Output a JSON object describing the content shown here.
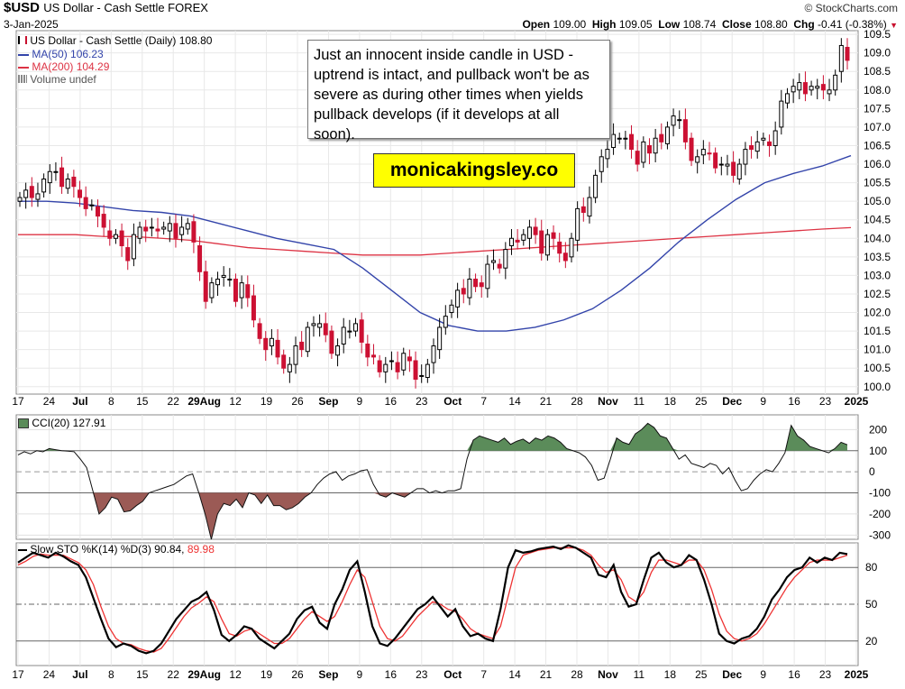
{
  "header": {
    "symbol": "$USD",
    "name": "US Dollar - Cash Settle FOREX",
    "date": "3-Jan-2025",
    "brand": "© StockCharts.com",
    "open_label": "Open",
    "open": "109.00",
    "high_label": "High",
    "high": "109.05",
    "low_label": "Low",
    "low": "108.74",
    "close_label": "Close",
    "close": "108.80",
    "chg_label": "Chg",
    "chg": "-0.41 (-0.38%)"
  },
  "legend": {
    "price": "US Dollar - Cash Settle (Daily) 108.80",
    "ma50": "MA(50) 106.23",
    "ma200": "MA(200) 104.29",
    "volume": "Volume undef"
  },
  "annotation": {
    "text": "Just an innocent inside candle in USD - uptrend is intact, and pullback won't be as severe as during other times when yields pullback develops (if it develops at all soon)."
  },
  "watermark": "monicakingsley.co",
  "cci_label": "CCI(20) 127.91",
  "sto_label_main": "Slow STO %K(14) %D(3) 90.84,",
  "sto_label_d": "89.98",
  "colors": {
    "up": "#000000",
    "down": "#cc1133",
    "ma50": "#3344aa",
    "ma200": "#dd3344",
    "cci_fill_pos": "#5b8c5a",
    "cci_fill_neg": "#9b5a55",
    "stoK": "#000000",
    "stoD": "#ee3333"
  },
  "chart_data": [
    {
      "type": "candlestick",
      "title": "US Dollar - Cash Settle (Daily)",
      "price_axis": {
        "ticks": [
          "100.0",
          "100.5",
          "101.0",
          "101.5",
          "102.0",
          "102.5",
          "103.0",
          "103.5",
          "104.0",
          "104.5",
          "105.0",
          "105.5",
          "106.0",
          "106.5",
          "107.0",
          "107.5",
          "108.0",
          "108.5",
          "109.0",
          "109.5"
        ],
        "range": [
          99.8,
          109.6
        ]
      },
      "x_ticks": [
        "17",
        "24",
        "Jul",
        "8",
        "15",
        "22",
        "29Aug",
        "12",
        "19",
        "26",
        "Sep",
        "9",
        "16",
        "23",
        "Oct",
        "7",
        "14",
        "21",
        "28",
        "Nov",
        "11",
        "18",
        "25",
        "Dec",
        "9",
        "16",
        "23",
        "2025"
      ],
      "close": [
        105.1,
        105.3,
        105.1,
        105.2,
        105.6,
        105.8,
        105.8,
        105.4,
        105.6,
        105.4,
        105.1,
        104.8,
        104.9,
        104.6,
        104.3,
        104.0,
        104.1,
        103.8,
        103.4,
        104.1,
        104.3,
        104.2,
        104.3,
        104.2,
        104.3,
        104.4,
        104.0,
        104.3,
        104.4,
        103.9,
        103.1,
        102.3,
        102.8,
        102.9,
        103.0,
        102.9,
        102.3,
        102.8,
        102.4,
        101.8,
        101.3,
        101.0,
        101.3,
        100.8,
        100.5,
        100.6,
        101.1,
        101.0,
        101.6,
        101.7,
        101.7,
        101.4,
        100.9,
        101.1,
        101.6,
        101.5,
        101.7,
        101.2,
        100.8,
        100.8,
        100.4,
        100.6,
        100.7,
        100.4,
        100.9,
        100.7,
        100.2,
        100.3,
        100.6,
        101.1,
        101.6,
        101.9,
        102.2,
        102.6,
        102.5,
        102.9,
        102.7,
        102.7,
        103.3,
        103.4,
        103.2,
        103.7,
        104.0,
        103.9,
        104.1,
        104.3,
        104.1,
        103.6,
        104.1,
        104.0,
        103.6,
        103.4,
        104.0,
        104.8,
        104.7,
        105.1,
        105.7,
        106.2,
        106.4,
        106.8,
        106.7,
        106.7,
        106.4,
        106.0,
        106.6,
        106.3,
        106.7,
        106.6,
        107.0,
        107.3,
        107.2,
        106.6,
        106.1,
        106.2,
        106.4,
        106.3,
        105.9,
        106.0,
        106.0,
        105.7,
        106.0,
        106.4,
        106.4,
        106.6,
        106.7,
        106.5,
        106.9,
        107.7,
        107.9,
        108.1,
        108.2,
        107.9,
        108.1,
        108.1,
        108.0,
        108.0,
        108.4,
        109.2,
        108.8
      ],
      "ma50": [
        105.0,
        105.0,
        104.95,
        104.85,
        104.75,
        104.7,
        104.6,
        104.4,
        104.2,
        104.0,
        103.85,
        103.7,
        103.2,
        102.6,
        102.0,
        101.65,
        101.5,
        101.5,
        101.6,
        101.8,
        102.1,
        102.6,
        103.2,
        103.9,
        104.5,
        105.05,
        105.5,
        105.75,
        105.95,
        106.23
      ],
      "ma200": [
        104.1,
        104.1,
        104.1,
        104.05,
        104.05,
        104.0,
        103.95,
        103.85,
        103.75,
        103.7,
        103.65,
        103.6,
        103.55,
        103.55,
        103.55,
        103.6,
        103.65,
        103.7,
        103.75,
        103.8,
        103.85,
        103.9,
        103.95,
        104.0,
        104.05,
        104.1,
        104.15,
        104.2,
        104.25,
        104.29
      ]
    },
    {
      "type": "line",
      "title": "CCI(20)",
      "yticks": [
        "200",
        "100",
        "0",
        "-100",
        "-200",
        "-300"
      ],
      "range": [
        -320,
        270
      ],
      "values": [
        80,
        95,
        85,
        100,
        95,
        110,
        105,
        100,
        98,
        95,
        60,
        20,
        -90,
        -200,
        -170,
        -120,
        -130,
        -190,
        -185,
        -160,
        -140,
        -100,
        -90,
        -80,
        -70,
        -60,
        -40,
        -20,
        -10,
        -100,
        -200,
        -320,
        -200,
        -150,
        -160,
        -130,
        -170,
        -100,
        -110,
        -150,
        -110,
        -160,
        -160,
        -180,
        -170,
        -150,
        -120,
        -100,
        -60,
        -30,
        -10,
        0,
        -40,
        -20,
        -10,
        5,
        10,
        -60,
        -110,
        -120,
        -100,
        -110,
        -120,
        -100,
        -80,
        -80,
        -100,
        -90,
        -100,
        -90,
        -90,
        -80,
        60,
        150,
        170,
        160,
        150,
        140,
        160,
        130,
        145,
        155,
        135,
        160,
        150,
        170,
        160,
        140,
        110,
        100,
        90,
        70,
        30,
        -40,
        -30,
        60,
        160,
        140,
        130,
        180,
        200,
        230,
        210,
        170,
        160,
        110,
        60,
        80,
        40,
        30,
        20,
        40,
        30,
        -10,
        20,
        -40,
        -90,
        -80,
        -40,
        -10,
        10,
        0,
        40,
        90,
        220,
        170,
        150,
        120,
        110,
        100,
        90,
        110,
        140,
        128
      ],
      "fill_levels": [
        100,
        -100
      ]
    },
    {
      "type": "line",
      "title": "Slow STO %K(14) %D(3)",
      "yticks": [
        "80",
        "50",
        "20"
      ],
      "range": [
        0,
        100
      ],
      "series": [
        {
          "name": "%K",
          "values": [
            84,
            88,
            92,
            90,
            88,
            92,
            89,
            85,
            82,
            72,
            55,
            38,
            22,
            15,
            18,
            16,
            12,
            10,
            12,
            18,
            28,
            38,
            45,
            52,
            55,
            60,
            45,
            25,
            20,
            25,
            32,
            30,
            22,
            18,
            14,
            20,
            26,
            38,
            45,
            48,
            35,
            30,
            50,
            62,
            78,
            85,
            60,
            32,
            18,
            16,
            22,
            30,
            38,
            46,
            50,
            56,
            48,
            40,
            46,
            32,
            24,
            26,
            22,
            20,
            46,
            80,
            94,
            92,
            93,
            95,
            96,
            97,
            95,
            98,
            96,
            92,
            88,
            74,
            72,
            82,
            60,
            48,
            50,
            70,
            88,
            92,
            84,
            80,
            82,
            90,
            86,
            70,
            50,
            26,
            20,
            18,
            22,
            24,
            30,
            40,
            54,
            62,
            72,
            78,
            80,
            88,
            84,
            88,
            86,
            92,
            90.84
          ]
        },
        {
          "name": "%D",
          "values": [
            82,
            85,
            89,
            91,
            90,
            90,
            90,
            87,
            84,
            78,
            66,
            48,
            32,
            22,
            18,
            17,
            14,
            12,
            11,
            14,
            22,
            31,
            40,
            47,
            51,
            56,
            52,
            38,
            26,
            24,
            28,
            30,
            26,
            22,
            18,
            18,
            22,
            30,
            38,
            44,
            40,
            36,
            40,
            52,
            66,
            78,
            72,
            52,
            32,
            22,
            20,
            24,
            32,
            40,
            46,
            52,
            50,
            46,
            44,
            38,
            30,
            26,
            24,
            22,
            32,
            56,
            80,
            90,
            92,
            94,
            95,
            96,
            96,
            96,
            96,
            94,
            90,
            82,
            76,
            78,
            70,
            56,
            52,
            60,
            76,
            86,
            86,
            84,
            82,
            86,
            86,
            78,
            62,
            42,
            28,
            22,
            20,
            22,
            26,
            34,
            44,
            54,
            64,
            72,
            78,
            84,
            86,
            86,
            86,
            88,
            89.98
          ]
        }
      ]
    }
  ]
}
